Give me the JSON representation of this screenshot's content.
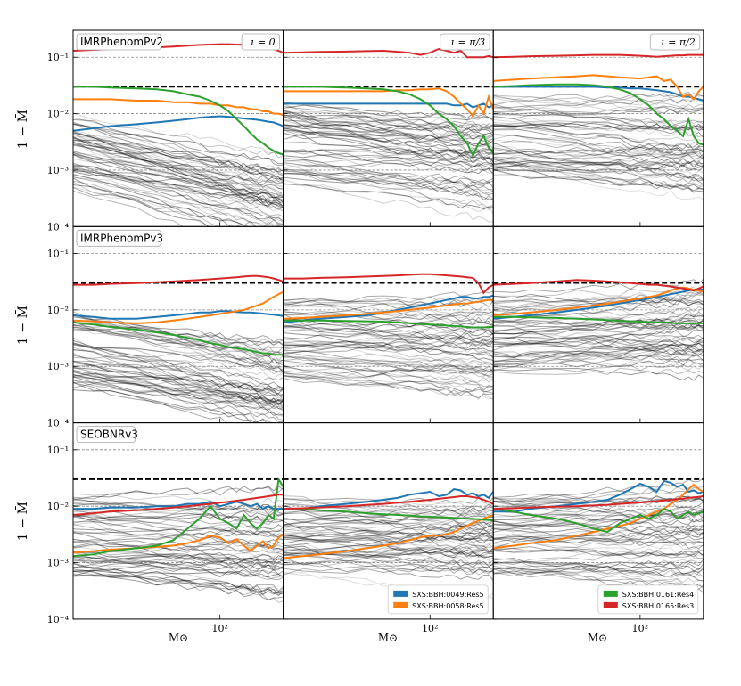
{
  "figure": {
    "ylabel": "1 − M̄",
    "xlabel": "M⊙",
    "xtick_label": "10²",
    "ytick_labels": [
      "10⁻¹",
      "10⁻²",
      "10⁻³",
      "10⁻⁴"
    ]
  },
  "chart_data": {
    "type": "line",
    "description_free": true,
    "xscale": "log",
    "yscale": "log",
    "xlim": [
      20,
      200
    ],
    "ylim": [
      0.0001,
      0.3
    ],
    "xticks": [
      100
    ],
    "yticks": [
      0.1,
      0.01,
      0.001,
      0.0001
    ],
    "reference_lines": {
      "dashed_black": 0.03,
      "dashed_grey": [
        0.1,
        0.01,
        0.001
      ]
    },
    "x": [
      20,
      25,
      30,
      40,
      50,
      60,
      70,
      80,
      90,
      100,
      110,
      120,
      130,
      140,
      150,
      160,
      170,
      180,
      190,
      200
    ],
    "rows": [
      {
        "model": "IMRPhenomPv2"
      },
      {
        "model": "IMRPhenomPv3"
      },
      {
        "model": "SEOBNRv3"
      }
    ],
    "columns": [
      {
        "inclination": "ι = 0"
      },
      {
        "inclination": "ι = π/3"
      },
      {
        "inclination": "ι = π/2"
      }
    ],
    "legend_left": {
      "position": "bottom-right of row 3, column 2",
      "entries": [
        {
          "label": "SXS:BBH:0049:Res5",
          "color": "#1f77b4"
        },
        {
          "label": "SXS:BBH:0058:Res5",
          "color": "#ff7f0e"
        }
      ]
    },
    "legend_right": {
      "position": "bottom-right of row 3, column 3",
      "entries": [
        {
          "label": "SXS:BBH:0161:Res4",
          "color": "#2ca02c"
        },
        {
          "label": "SXS:BBH:0165:Res3",
          "color": "#d62728"
        }
      ]
    },
    "highlighted_series": [
      {
        "name": "SXS:BBH:0049:Res5",
        "color": "#1f77b4",
        "panels": [
          [
            0.005,
            0.0055,
            0.006,
            0.0065,
            0.007,
            0.0075,
            0.008,
            0.0085,
            0.0088,
            0.009,
            0.0088,
            0.0085,
            0.0082,
            0.008,
            0.0078,
            0.0075,
            0.0072,
            0.007,
            0.0065,
            0.006
          ],
          [
            0.015,
            0.015,
            0.015,
            0.015,
            0.015,
            0.015,
            0.015,
            0.015,
            0.015,
            0.015,
            0.015,
            0.015,
            0.014,
            0.014,
            0.015,
            0.013,
            0.014,
            0.015,
            0.013,
            0.014
          ],
          [
            0.03,
            0.03,
            0.03,
            0.03,
            0.03,
            0.03,
            0.029,
            0.029,
            0.028,
            0.028,
            0.027,
            0.026,
            0.025,
            0.024,
            0.022,
            0.02,
            0.02,
            0.019,
            0.018,
            0.017
          ],
          [
            0.008,
            0.0075,
            0.007,
            0.007,
            0.0075,
            0.008,
            0.0085,
            0.009,
            0.009,
            0.0095,
            0.0095,
            0.0092,
            0.009,
            0.009,
            0.0088,
            0.0086,
            0.0084,
            0.0082,
            0.008,
            0.0078
          ],
          [
            0.006,
            0.0065,
            0.007,
            0.0075,
            0.008,
            0.009,
            0.01,
            0.011,
            0.012,
            0.013,
            0.014,
            0.015,
            0.016,
            0.017,
            0.017,
            0.016,
            0.016,
            0.017,
            0.017,
            0.018
          ],
          [
            0.007,
            0.0075,
            0.008,
            0.009,
            0.01,
            0.011,
            0.012,
            0.013,
            0.014,
            0.015,
            0.016,
            0.017,
            0.018,
            0.019,
            0.02,
            0.021,
            0.022,
            0.023,
            0.023,
            0.023
          ],
          [
            0.009,
            0.009,
            0.0095,
            0.0095,
            0.01,
            0.01,
            0.011,
            0.011,
            0.012,
            0.01,
            0.011,
            0.012,
            0.011,
            0.01,
            0.011,
            0.009,
            0.01,
            0.009,
            0.009,
            0.009
          ],
          [
            0.009,
            0.009,
            0.01,
            0.011,
            0.012,
            0.013,
            0.014,
            0.016,
            0.017,
            0.018,
            0.015,
            0.016,
            0.02,
            0.019,
            0.016,
            0.017,
            0.015,
            0.016,
            0.014,
            0.018
          ],
          [
            0.008,
            0.008,
            0.009,
            0.01,
            0.011,
            0.012,
            0.013,
            0.016,
            0.02,
            0.025,
            0.022,
            0.018,
            0.028,
            0.026,
            0.022,
            0.024,
            0.018,
            0.019,
            0.017,
            0.018
          ]
        ]
      },
      {
        "name": "SXS:BBH:0058:Res5",
        "color": "#ff7f0e",
        "panels": [
          [
            0.018,
            0.018,
            0.018,
            0.017,
            0.017,
            0.016,
            0.016,
            0.015,
            0.015,
            0.014,
            0.014,
            0.013,
            0.013,
            0.012,
            0.012,
            0.011,
            0.011,
            0.01,
            0.01,
            0.0095
          ],
          [
            0.025,
            0.025,
            0.025,
            0.025,
            0.025,
            0.025,
            0.026,
            0.026,
            0.027,
            0.027,
            0.028,
            0.025,
            0.02,
            0.015,
            0.012,
            0.009,
            0.014,
            0.01,
            0.02,
            0.012
          ],
          [
            0.038,
            0.04,
            0.042,
            0.044,
            0.046,
            0.048,
            0.046,
            0.044,
            0.043,
            0.042,
            0.044,
            0.046,
            0.038,
            0.04,
            0.03,
            0.02,
            0.022,
            0.018,
            0.025,
            0.03
          ],
          [
            0.0065,
            0.0063,
            0.006,
            0.0058,
            0.006,
            0.0065,
            0.007,
            0.0075,
            0.008,
            0.0085,
            0.009,
            0.0095,
            0.01,
            0.011,
            0.012,
            0.013,
            0.015,
            0.017,
            0.019,
            0.021
          ],
          [
            0.007,
            0.0072,
            0.0075,
            0.008,
            0.0085,
            0.009,
            0.0095,
            0.01,
            0.0105,
            0.011,
            0.0115,
            0.012,
            0.0125,
            0.013,
            0.013,
            0.0135,
            0.014,
            0.0145,
            0.015,
            0.015
          ],
          [
            0.008,
            0.0085,
            0.009,
            0.01,
            0.011,
            0.012,
            0.013,
            0.014,
            0.015,
            0.016,
            0.017,
            0.018,
            0.02,
            0.022,
            0.024,
            0.025,
            0.024,
            0.023,
            0.022,
            0.021
          ],
          [
            0.0015,
            0.0016,
            0.0017,
            0.0018,
            0.0019,
            0.002,
            0.0022,
            0.0025,
            0.003,
            0.0028,
            0.0022,
            0.0026,
            0.002,
            0.0016,
            0.002,
            0.0024,
            0.0018,
            0.002,
            0.0028,
            0.0032
          ],
          [
            0.0012,
            0.0013,
            0.0014,
            0.0016,
            0.0018,
            0.002,
            0.0022,
            0.0025,
            0.0028,
            0.003,
            0.003,
            0.0032,
            0.0035,
            0.004,
            0.0045,
            0.005,
            0.0055,
            0.006,
            0.0065,
            0.007
          ],
          [
            0.0018,
            0.002,
            0.0022,
            0.0025,
            0.003,
            0.0035,
            0.004,
            0.0045,
            0.005,
            0.006,
            0.007,
            0.008,
            0.009,
            0.011,
            0.013,
            0.016,
            0.02,
            0.024,
            0.02,
            0.018
          ]
        ]
      },
      {
        "name": "SXS:BBH:0161:Res4",
        "color": "#2ca02c",
        "panels": [
          [
            0.03,
            0.03,
            0.029,
            0.028,
            0.027,
            0.025,
            0.022,
            0.02,
            0.017,
            0.014,
            0.011,
            0.008,
            0.006,
            0.0045,
            0.0035,
            0.003,
            0.0025,
            0.0022,
            0.002,
            0.0019
          ],
          [
            0.03,
            0.03,
            0.03,
            0.029,
            0.028,
            0.027,
            0.025,
            0.022,
            0.018,
            0.014,
            0.01,
            0.008,
            0.006,
            0.004,
            0.003,
            0.0018,
            0.003,
            0.004,
            0.0025,
            0.002
          ],
          [
            0.03,
            0.031,
            0.032,
            0.033,
            0.033,
            0.032,
            0.03,
            0.027,
            0.023,
            0.018,
            0.014,
            0.01,
            0.008,
            0.006,
            0.005,
            0.004,
            0.008,
            0.004,
            0.003,
            0.0028
          ],
          [
            0.006,
            0.0055,
            0.005,
            0.0045,
            0.004,
            0.0036,
            0.0032,
            0.0029,
            0.0026,
            0.0024,
            0.0022,
            0.0021,
            0.002,
            0.0019,
            0.0018,
            0.0017,
            0.0017,
            0.0016,
            0.0016,
            0.0016
          ],
          [
            0.0065,
            0.0065,
            0.0065,
            0.0064,
            0.0063,
            0.0062,
            0.006,
            0.0058,
            0.0056,
            0.0055,
            0.0054,
            0.0053,
            0.0052,
            0.0051,
            0.005,
            0.0049,
            0.0049,
            0.0049,
            0.005,
            0.005
          ],
          [
            0.0075,
            0.0075,
            0.0074,
            0.0072,
            0.007,
            0.0068,
            0.0066,
            0.0064,
            0.0063,
            0.0062,
            0.0061,
            0.006,
            0.006,
            0.0059,
            0.0058,
            0.0058,
            0.0058,
            0.0058,
            0.0058,
            0.0058
          ],
          [
            0.0013,
            0.0014,
            0.0016,
            0.0018,
            0.002,
            0.0025,
            0.004,
            0.006,
            0.01,
            0.006,
            0.005,
            0.004,
            0.007,
            0.005,
            0.004,
            0.005,
            0.007,
            0.006,
            0.03,
            0.022
          ],
          [
            0.009,
            0.009,
            0.0085,
            0.008,
            0.0075,
            0.0072,
            0.007,
            0.0068,
            0.0066,
            0.0065,
            0.0064,
            0.0063,
            0.0062,
            0.0061,
            0.006,
            0.006,
            0.0059,
            0.0058,
            0.0057,
            0.0056
          ],
          [
            0.009,
            0.008,
            0.007,
            0.006,
            0.005,
            0.004,
            0.0035,
            0.005,
            0.006,
            0.007,
            0.006,
            0.007,
            0.009,
            0.008,
            0.006,
            0.007,
            0.008,
            0.007,
            0.0075,
            0.008
          ]
        ]
      },
      {
        "name": "SXS:BBH:0165:Res3",
        "color": "#d62728",
        "panels": [
          [
            0.13,
            0.135,
            0.14,
            0.145,
            0.15,
            0.155,
            0.16,
            0.165,
            0.168,
            0.17,
            0.17,
            0.168,
            0.165,
            0.16,
            0.155,
            0.15,
            0.145,
            0.14,
            0.13,
            0.12
          ],
          [
            0.12,
            0.122,
            0.124,
            0.126,
            0.128,
            0.13,
            0.125,
            0.12,
            0.11,
            0.12,
            0.14,
            0.13,
            0.12,
            0.13,
            0.1,
            0.1,
            0.1,
            0.1,
            0.105,
            0.1
          ],
          [
            0.1,
            0.102,
            0.104,
            0.106,
            0.108,
            0.11,
            0.11,
            0.11,
            0.108,
            0.106,
            0.104,
            0.102,
            0.104,
            0.106,
            0.108,
            0.108,
            0.11,
            0.11,
            0.11,
            0.11
          ],
          [
            0.028,
            0.028,
            0.029,
            0.03,
            0.031,
            0.032,
            0.033,
            0.034,
            0.035,
            0.036,
            0.037,
            0.038,
            0.039,
            0.04,
            0.04,
            0.039,
            0.038,
            0.036,
            0.034,
            0.032
          ],
          [
            0.036,
            0.036,
            0.037,
            0.038,
            0.039,
            0.04,
            0.041,
            0.042,
            0.043,
            0.043,
            0.042,
            0.041,
            0.04,
            0.039,
            0.038,
            0.037,
            0.03,
            0.02,
            0.025,
            0.028
          ],
          [
            0.028,
            0.029,
            0.03,
            0.032,
            0.034,
            0.033,
            0.032,
            0.031,
            0.03,
            0.029,
            0.028,
            0.028,
            0.027,
            0.026,
            0.025,
            0.024,
            0.023,
            0.022,
            0.024,
            0.026
          ],
          [
            0.007,
            0.0075,
            0.008,
            0.0085,
            0.009,
            0.0095,
            0.01,
            0.0105,
            0.011,
            0.0115,
            0.012,
            0.0125,
            0.013,
            0.0135,
            0.014,
            0.0145,
            0.015,
            0.0155,
            0.016,
            0.016
          ],
          [
            0.009,
            0.0092,
            0.0095,
            0.01,
            0.0105,
            0.011,
            0.0115,
            0.012,
            0.0125,
            0.013,
            0.0135,
            0.014,
            0.0145,
            0.015,
            0.015,
            0.0145,
            0.014,
            0.013,
            0.012,
            0.011
          ],
          [
            0.009,
            0.0092,
            0.0095,
            0.0098,
            0.01,
            0.0103,
            0.0106,
            0.011,
            0.0113,
            0.0116,
            0.012,
            0.0123,
            0.0126,
            0.013,
            0.0133,
            0.0136,
            0.014,
            0.0143,
            0.0146,
            0.015
          ]
        ]
      }
    ],
    "background_series": {
      "color": "#000000",
      "count_per_panel": 60,
      "panel_levels": [
        0.002,
        0.003,
        0.004,
        0.002,
        0.003,
        0.004,
        0.003,
        0.003,
        0.003
      ],
      "panel_slopes": [
        -0.9,
        -0.35,
        -0.2,
        -0.6,
        -0.1,
        0.1,
        -0.15,
        -0.05,
        0.0
      ]
    }
  }
}
